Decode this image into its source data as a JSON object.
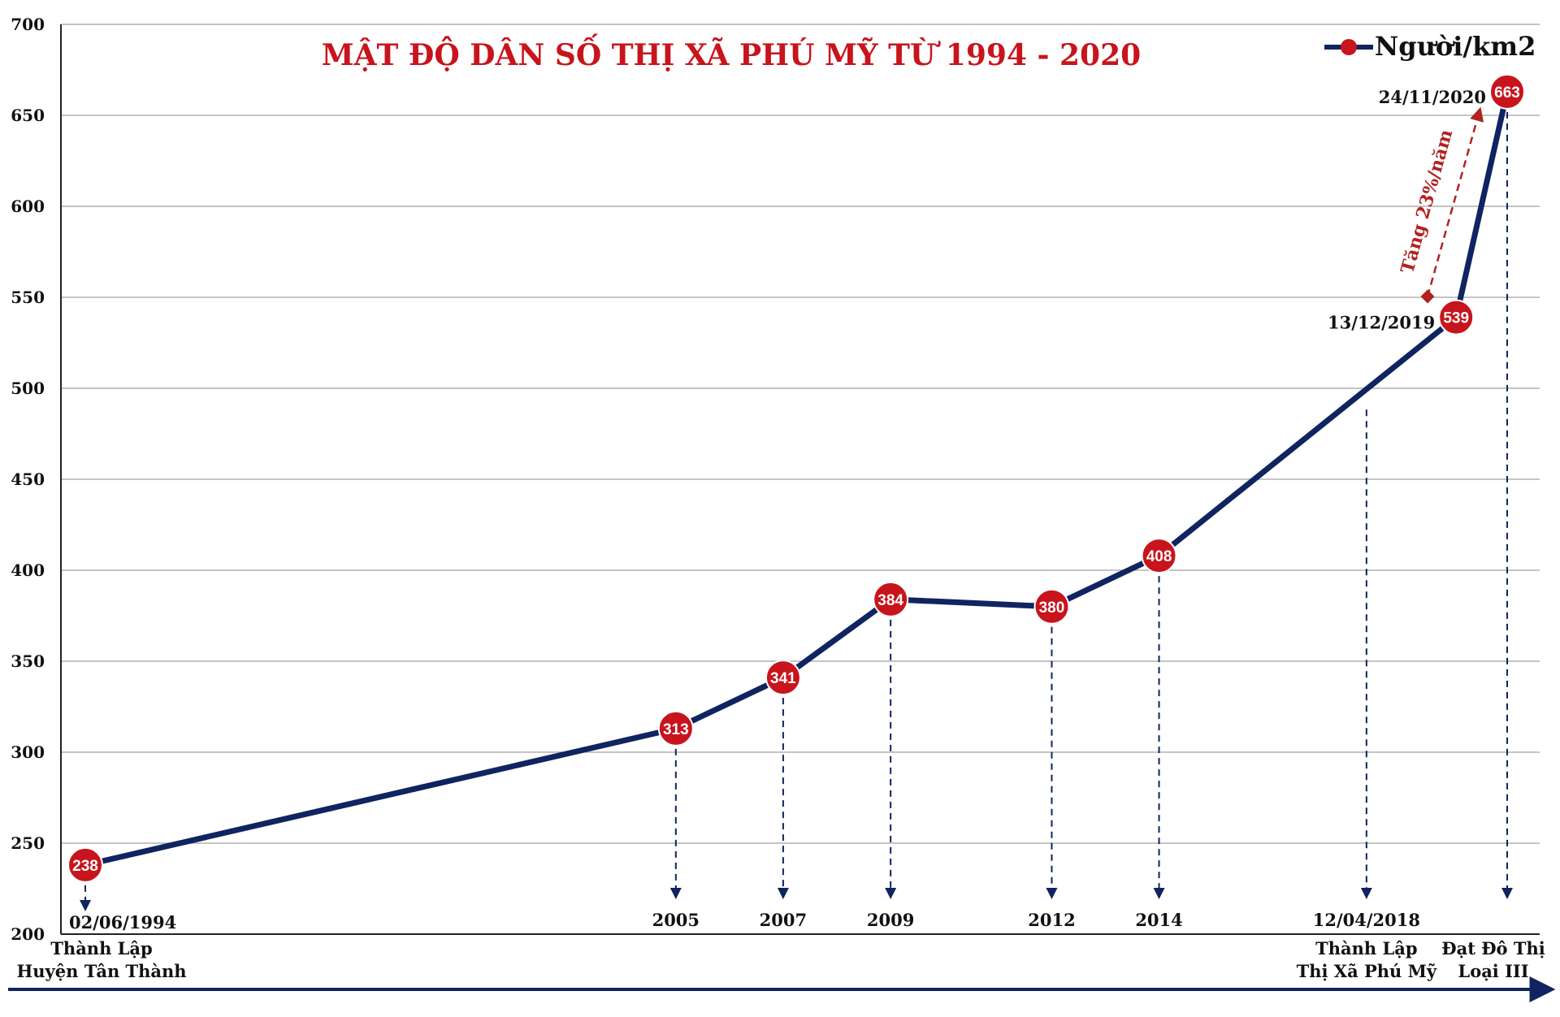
{
  "chart_data": {
    "type": "line",
    "title": "MẬT ĐỘ DÂN SỐ THỊ XÃ PHÚ MỸ TỪ 1994 - 2020",
    "ylim": [
      200,
      700
    ],
    "y_ticks": [
      "200",
      "250",
      "300",
      "350",
      "400",
      "450",
      "500",
      "550",
      "600",
      "650",
      "700"
    ],
    "grid": true,
    "legend": {
      "position": "top-right",
      "label": "Người/km2"
    },
    "series": [
      {
        "name": "Người/km2",
        "points": [
          {
            "date": "1994-06-02",
            "value": 238,
            "label": "238"
          },
          {
            "date": "2005-06-01",
            "value": 313,
            "label": "313"
          },
          {
            "date": "2007-06-01",
            "value": 341,
            "label": "341"
          },
          {
            "date": "2009-06-01",
            "value": 384,
            "label": "384"
          },
          {
            "date": "2012-06-01",
            "value": 380,
            "label": "380"
          },
          {
            "date": "2014-06-01",
            "value": 408,
            "label": "408"
          },
          {
            "date": "2019-12-13",
            "value": 539,
            "label": "539"
          },
          {
            "date": "2020-11-24",
            "value": 663,
            "label": "663"
          }
        ]
      }
    ],
    "x_markers": [
      {
        "date": "1994-06-02",
        "text": "02/06/1994",
        "sub": [
          "Thành Lập",
          "Huyện Tân Thành"
        ]
      },
      {
        "date": "2005-06-01",
        "text": "2005",
        "sub": []
      },
      {
        "date": "2007-06-01",
        "text": "2007",
        "sub": []
      },
      {
        "date": "2009-06-01",
        "text": "2009",
        "sub": []
      },
      {
        "date": "2012-06-01",
        "text": "2012",
        "sub": []
      },
      {
        "date": "2014-06-01",
        "text": "2014",
        "sub": []
      },
      {
        "date": "2018-04-12",
        "text": "12/04/2018",
        "sub": [
          "Thành Lập",
          "Thị Xã Phú Mỹ"
        ]
      },
      {
        "date": "2020-11-24",
        "text": "",
        "sub": [
          "Đạt Đô Thị",
          "Loại III"
        ]
      }
    ],
    "point_annotations": [
      {
        "date": "2019-12-13",
        "text": "13/12/2019"
      },
      {
        "date": "2020-11-24",
        "text": "24/11/2020"
      }
    ],
    "growth_annotation": {
      "text": "Tăng 23%/năm"
    }
  },
  "colors": {
    "line": "#0f2460",
    "marker": "#c8141c",
    "title": "#c8141c",
    "grid": "#b0b0b0",
    "arrow": "#0f2460",
    "growth": "#b22222"
  }
}
